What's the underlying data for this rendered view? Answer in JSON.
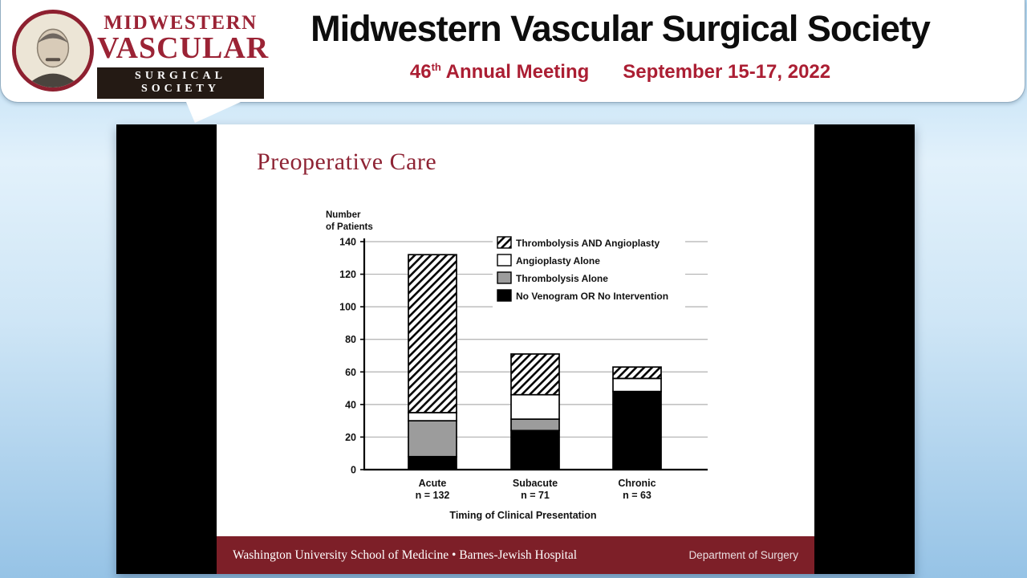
{
  "header": {
    "logo": {
      "line1": "MIDWESTERN",
      "line2": "VASCULAR",
      "line3": "SURGICAL SOCIETY"
    },
    "title": "Midwestern Vascular Surgical Society",
    "meeting": {
      "number": "46",
      "suffix": "th",
      "rest": " Annual Meeting"
    },
    "dates": "September 15-17, 2022"
  },
  "slide": {
    "title": "Preoperative Care",
    "footer_left": "Washington University School of Medicine • Barnes-Jewish Hospital",
    "footer_right": "Department of Surgery"
  },
  "colors": {
    "brand_red": "#9b2335",
    "meeting_red": "#ab1e33",
    "footer_maroon": "#7d1f28",
    "slide_side_bars": "#000000",
    "chart_gray": "#9c9c9c"
  },
  "chart_data": {
    "type": "bar",
    "stacked": true,
    "title": "",
    "ylabel_lines": [
      "Number",
      "of Patients"
    ],
    "xlabel": "Timing of Clinical Presentation",
    "categories": [
      "Acute",
      "Subacute",
      "Chronic"
    ],
    "category_sublabels": [
      "n = 132",
      "n = 71",
      "n = 63"
    ],
    "ylim": [
      0,
      140
    ],
    "ytick_step": 20,
    "grid": true,
    "legend_position": "top-right",
    "series": [
      {
        "name": "No Venogram OR No Intervention",
        "fill": "black",
        "values": [
          8,
          24,
          48
        ]
      },
      {
        "name": "Thrombolysis Alone",
        "fill": "gray",
        "values": [
          22,
          7,
          0
        ]
      },
      {
        "name": "Angioplasty Alone",
        "fill": "white",
        "values": [
          5,
          15,
          8
        ]
      },
      {
        "name": "Thrombolysis AND Angioplasty",
        "fill": "hatch",
        "values": [
          97,
          25,
          7
        ]
      }
    ],
    "legend_order": [
      "Thrombolysis AND Angioplasty",
      "Angioplasty Alone",
      "Thrombolysis Alone",
      "No Venogram OR No Intervention"
    ]
  }
}
